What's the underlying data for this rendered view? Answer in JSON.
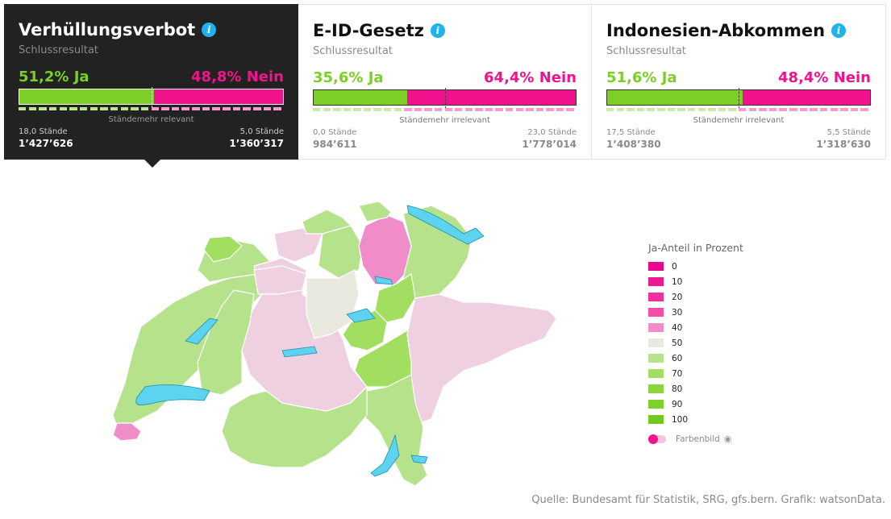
{
  "cards": [
    {
      "title": "Verhüllungsverbot",
      "subtitle": "Schlussresultat",
      "yes_label": "51,2% Ja",
      "no_label": "48,8% Nein",
      "yes_share": 0.512,
      "staendemehr": "Ständemehr relevant",
      "staende_yes": "18,0 Stände",
      "staende_no": "5,0 Stände",
      "votes_yes": "1’427’626",
      "votes_no": "1’360’317",
      "active": true
    },
    {
      "title": "E-ID-Gesetz",
      "subtitle": "Schlussresultat",
      "yes_label": "35,6% Ja",
      "no_label": "64,4% Nein",
      "yes_share": 0.356,
      "staendemehr": "Ständemehr irrelevant",
      "staende_yes": "0,0 Stände",
      "staende_no": "23,0 Stände",
      "votes_yes": "984’611",
      "votes_no": "1’778’014",
      "active": false
    },
    {
      "title": "Indonesien-Abkommen",
      "subtitle": "Schlussresultat",
      "yes_label": "51,6% Ja",
      "no_label": "48,4% Nein",
      "yes_share": 0.516,
      "staendemehr": "Ständemehr irrelevant",
      "staende_yes": "17,5 Stände",
      "staende_no": "5,5 Stände",
      "votes_yes": "1’408’380",
      "votes_no": "1’318’630",
      "active": false
    }
  ],
  "legend": {
    "title": "Ja-Anteil in Prozent",
    "items": [
      {
        "value": "0",
        "color": "#e8088a"
      },
      {
        "value": "10",
        "color": "#eb1a92"
      },
      {
        "value": "20",
        "color": "#ee2f9c"
      },
      {
        "value": "30",
        "color": "#f04ea9"
      },
      {
        "value": "40",
        "color": "#f08dc8"
      },
      {
        "value": "50",
        "color": "#e9e9e0"
      },
      {
        "value": "60",
        "color": "#b6e28c"
      },
      {
        "value": "70",
        "color": "#a2de60"
      },
      {
        "value": "80",
        "color": "#8bd63a"
      },
      {
        "value": "90",
        "color": "#7ed02a"
      },
      {
        "value": "100",
        "color": "#74c720"
      }
    ],
    "toggle_label": "Farbenbild"
  },
  "source": "Quelle: Bundesamt für Statistik, SRG, gfs.bern. Grafik: watsonData.",
  "colors": {
    "yes": "#7ccf26",
    "no": "#f0138d",
    "info": "#1fb2ec",
    "lake": "#5ed3f0",
    "dark": "#222222"
  }
}
